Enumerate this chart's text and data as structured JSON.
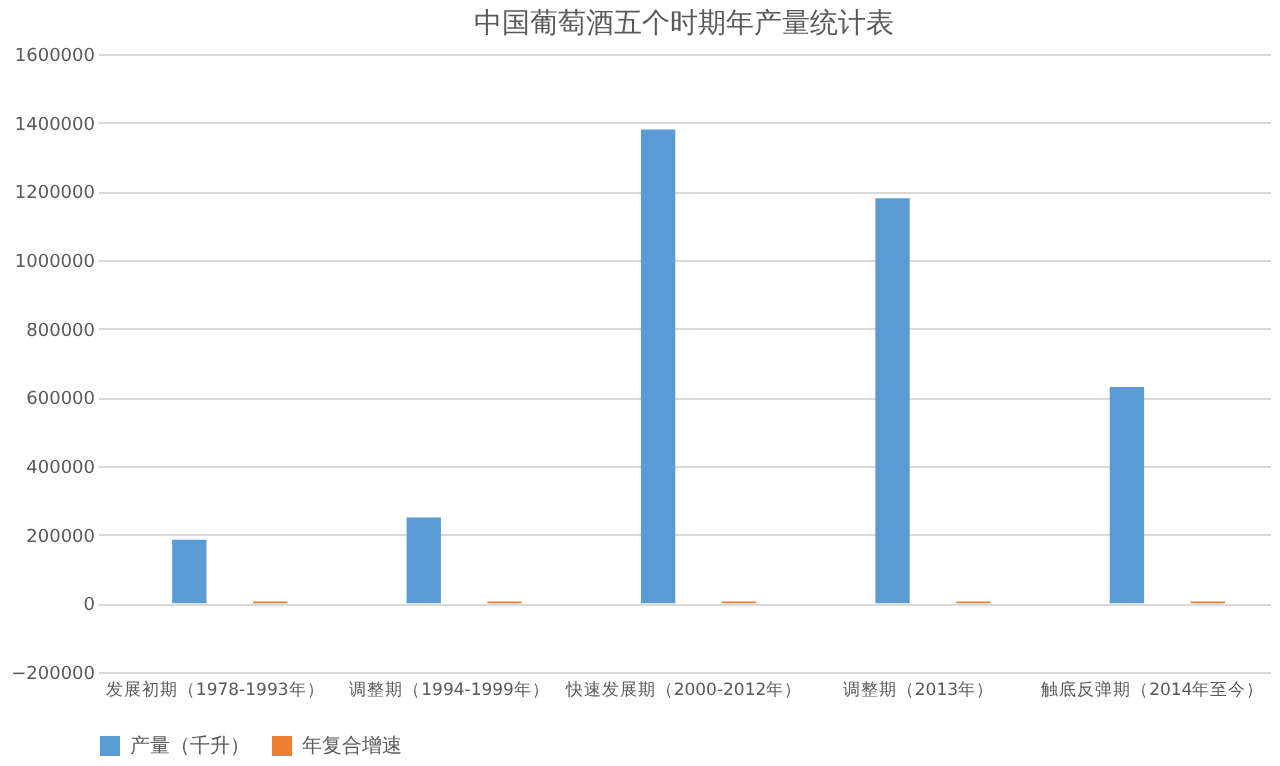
{
  "chart_data": {
    "type": "bar",
    "title": "中国葡萄酒五个时期年产量统计表",
    "categories": [
      "发展初期（1978-1993年）",
      "调整期（1994-1999年）",
      "快速发展期（2000-2012年）",
      "调整期（2013年）",
      "触底反弹期（2014年至今）"
    ],
    "series": [
      {
        "name": "产量（千升）",
        "color": "#5b9bd5",
        "values": [
          185000,
          250000,
          1380000,
          1180000,
          630000
        ]
      },
      {
        "name": "年复合增速",
        "color": "#ed7d31",
        "values": [
          5000,
          5000,
          5000,
          5000,
          5000
        ]
      }
    ],
    "ylim": [
      -200000,
      1600000
    ],
    "yticks": [
      -200000,
      0,
      200000,
      400000,
      600000,
      800000,
      1000000,
      1200000,
      1400000,
      1600000
    ],
    "grid": "y",
    "legend": "bottom"
  }
}
